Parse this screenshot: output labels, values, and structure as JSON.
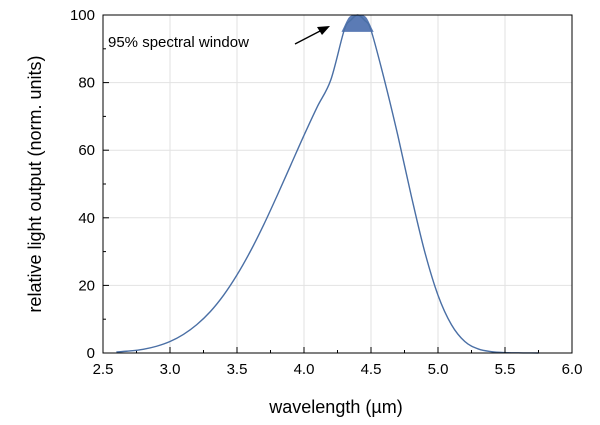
{
  "chart_data": {
    "type": "line",
    "xlabel": "wavelength (µm)",
    "ylabel": "relative light output (norm. units)",
    "xlim": [
      2.5,
      6.0
    ],
    "ylim": [
      0,
      100
    ],
    "x_ticks": [
      "2.5",
      "3.0",
      "3.5",
      "4.0",
      "4.5",
      "5.0",
      "5.5",
      "6.0"
    ],
    "y_ticks": [
      "0",
      "20",
      "40",
      "60",
      "80",
      "100"
    ],
    "grid": true,
    "series": [
      {
        "x": [
          2.6,
          2.7,
          2.8,
          2.9,
          3.0,
          3.1,
          3.2,
          3.3,
          3.4,
          3.5,
          3.6,
          3.7,
          3.8,
          3.9,
          4.0,
          4.1,
          4.2,
          4.3,
          4.35,
          4.4,
          4.45,
          4.5,
          4.6,
          4.7,
          4.8,
          4.9,
          5.0,
          5.1,
          5.2,
          5.3,
          5.4,
          5.5,
          5.6,
          5.7,
          5.75
        ],
        "y": [
          0.3,
          0.6,
          1.1,
          2.0,
          3.4,
          5.5,
          8.4,
          12.2,
          17.1,
          23.1,
          30.1,
          38.0,
          46.6,
          55.5,
          64.4,
          72.9,
          80.8,
          95.5,
          98.5,
          100,
          98.5,
          95.5,
          80.8,
          64.4,
          46.6,
          30.1,
          17.1,
          8.4,
          3.4,
          1.2,
          0.4,
          0.12,
          0.04,
          0.01,
          0.0
        ],
        "color": "#4a6fa5"
      }
    ],
    "highlight": {
      "label": "95% spectral window",
      "threshold": 95,
      "x_range": [
        4.28,
        4.52
      ],
      "fill": "#5b7bb5"
    }
  }
}
